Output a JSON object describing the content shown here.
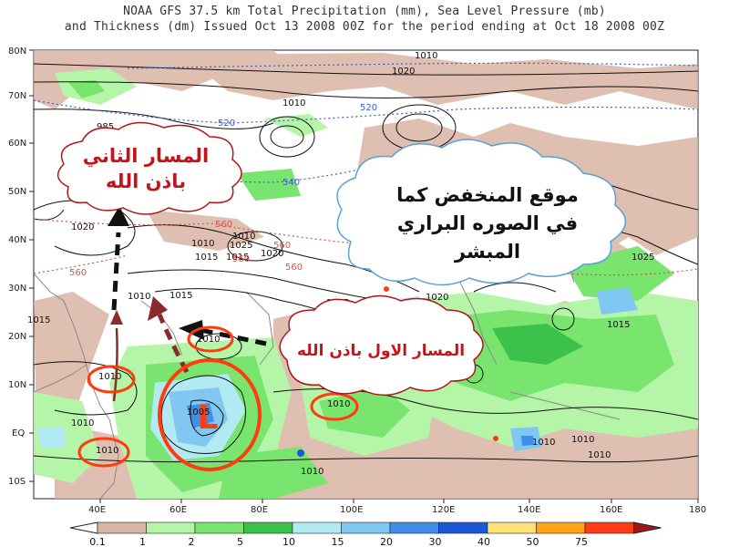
{
  "title_line1": "NOAA GFS 37.5 km Total Precipitation (mm), Sea Level Pressure (mb)",
  "title_line2": "and Thickness (dm)  Issued Oct 13 2008 00Z for the period ending at Oct 18 2008 00Z",
  "lat_labels": [
    "80N",
    "70N",
    "60N",
    "50N",
    "40N",
    "30N",
    "20N",
    "10N",
    "EQ",
    "10S"
  ],
  "lon_labels": [
    "40E",
    "60E",
    "80E",
    "100E",
    "120E",
    "140E",
    "160E",
    "180"
  ],
  "pressure_labels": [
    "1010",
    "1020",
    "1010",
    "1020",
    "1025",
    "1020",
    "1015",
    "1015",
    "1010",
    "1015",
    "1015",
    "1010",
    "1010",
    "1010",
    "1010",
    "1005",
    "1010",
    "1015",
    "1010",
    "1010",
    "1010",
    "1010",
    "1025",
    "1020",
    "1015",
    "1010",
    "1010",
    "985"
  ],
  "thickness_labels": [
    "520",
    "520",
    "540",
    "560",
    "560",
    "560",
    "560",
    "560"
  ],
  "colorbar": {
    "labels": [
      "0.1",
      "1",
      "2",
      "5",
      "10",
      "15",
      "20",
      "30",
      "40",
      "50",
      "75"
    ],
    "colors": [
      "#ffffff",
      "#d9b4a3",
      "#b4f5a8",
      "#79e46e",
      "#3cc24a",
      "#b2eaf3",
      "#80c7f2",
      "#3f8fe8",
      "#1a58d6",
      "#ffe37a",
      "#ffa31a",
      "#ff3a17",
      "#a01717"
    ]
  },
  "annotations": {
    "cloud_top_left": [
      "المسار الثاني",
      "باذن الله"
    ],
    "cloud_center": [
      "موقع المنخفض كما",
      "في الصوره    البراري",
      "المبشر"
    ],
    "cloud_right": [
      "المسار الاول باذن الله"
    ],
    "low_symbol": "L"
  },
  "marker_color": "#ff3b0f"
}
